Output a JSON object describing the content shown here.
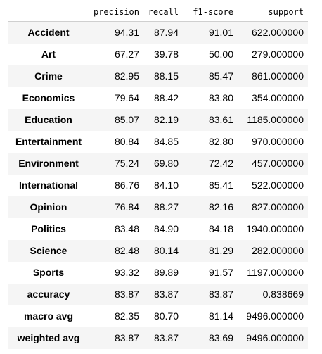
{
  "table": {
    "columns": [
      "",
      "precision",
      "recall",
      "f1-score",
      "support"
    ],
    "rows": [
      {
        "label": "Accident",
        "precision": "94.31",
        "recall": "87.94",
        "f1": "91.01",
        "support": "622.000000"
      },
      {
        "label": "Art",
        "precision": "67.27",
        "recall": "39.78",
        "f1": "50.00",
        "support": "279.000000"
      },
      {
        "label": "Crime",
        "precision": "82.95",
        "recall": "88.15",
        "f1": "85.47",
        "support": "861.000000"
      },
      {
        "label": "Economics",
        "precision": "79.64",
        "recall": "88.42",
        "f1": "83.80",
        "support": "354.000000"
      },
      {
        "label": "Education",
        "precision": "85.07",
        "recall": "82.19",
        "f1": "83.61",
        "support": "1185.000000"
      },
      {
        "label": "Entertainment",
        "precision": "80.84",
        "recall": "84.85",
        "f1": "82.80",
        "support": "970.000000"
      },
      {
        "label": "Environment",
        "precision": "75.24",
        "recall": "69.80",
        "f1": "72.42",
        "support": "457.000000"
      },
      {
        "label": "International",
        "precision": "86.76",
        "recall": "84.10",
        "f1": "85.41",
        "support": "522.000000"
      },
      {
        "label": "Opinion",
        "precision": "76.84",
        "recall": "88.27",
        "f1": "82.16",
        "support": "827.000000"
      },
      {
        "label": "Politics",
        "precision": "83.48",
        "recall": "84.90",
        "f1": "84.18",
        "support": "1940.000000"
      },
      {
        "label": "Science",
        "precision": "82.48",
        "recall": "80.14",
        "f1": "81.29",
        "support": "282.000000"
      },
      {
        "label": "Sports",
        "precision": "93.32",
        "recall": "89.89",
        "f1": "91.57",
        "support": "1197.000000"
      },
      {
        "label": "accuracy",
        "precision": "83.87",
        "recall": "83.87",
        "f1": "83.87",
        "support": "0.838669"
      },
      {
        "label": "macro avg",
        "precision": "82.35",
        "recall": "80.70",
        "f1": "81.14",
        "support": "9496.000000"
      },
      {
        "label": "weighted avg",
        "precision": "83.87",
        "recall": "83.87",
        "f1": "83.69",
        "support": "9496.000000"
      }
    ]
  }
}
